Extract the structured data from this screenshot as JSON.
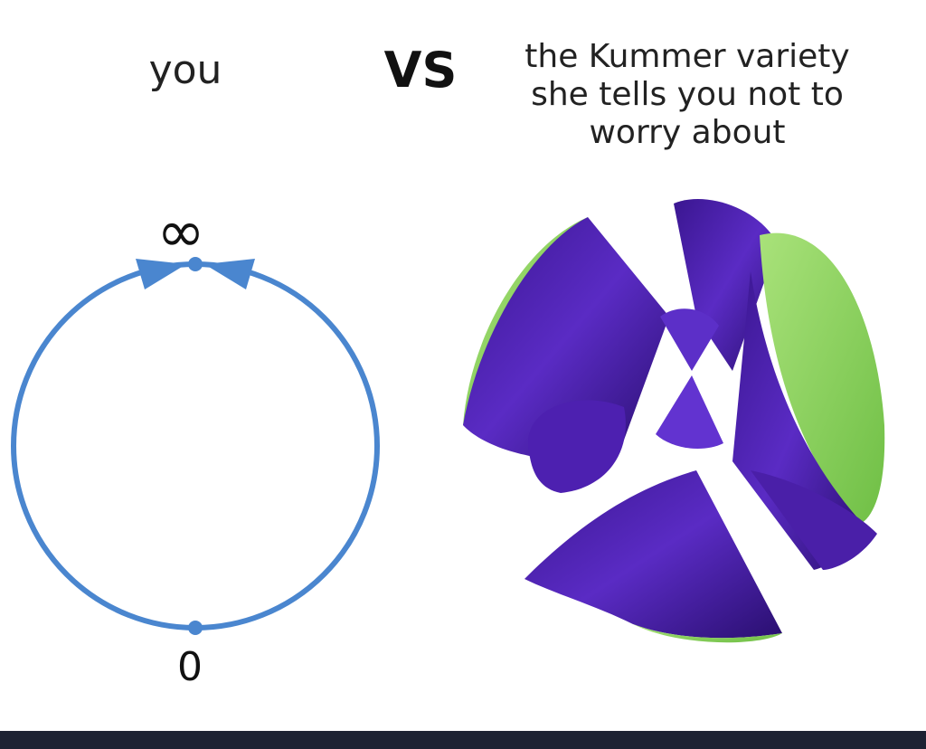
{
  "meme": {
    "left_caption": "you",
    "versus": "VS",
    "right_caption_lines": [
      "the Kummer variety",
      "she tells you not to",
      "worry about"
    ]
  },
  "circle_diagram": {
    "top_label": "∞",
    "bottom_label": "0"
  },
  "colors": {
    "circle_blue": "#4a86cf",
    "surface_purple": "#4a1fa8",
    "surface_green": "#8ed45c",
    "footer": "#1d2233"
  }
}
